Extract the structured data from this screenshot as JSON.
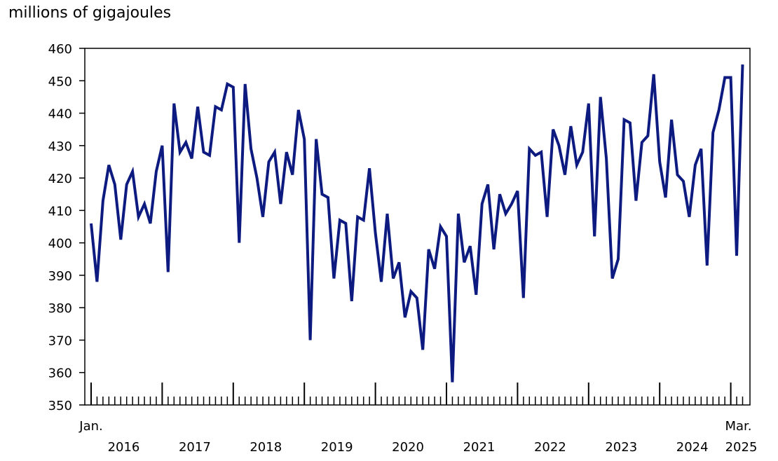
{
  "chart_data": {
    "type": "line",
    "title": "",
    "ylabel": "millions of gigajoules",
    "xlabel": "",
    "ylim": [
      350,
      460
    ],
    "yticks": [
      "350",
      "360",
      "370",
      "380",
      "390",
      "400",
      "410",
      "420",
      "430",
      "440",
      "450",
      "460"
    ],
    "x_start_label": "Jan.",
    "x_end_label": "Mar.",
    "year_labels": [
      "2016",
      "2017",
      "2018",
      "2019",
      "2020",
      "2021",
      "2022",
      "2023",
      "2024",
      "2025"
    ],
    "x": [
      "2016-01",
      "2016-02",
      "2016-03",
      "2016-04",
      "2016-05",
      "2016-06",
      "2016-07",
      "2016-08",
      "2016-09",
      "2016-10",
      "2016-11",
      "2016-12",
      "2017-01",
      "2017-02",
      "2017-03",
      "2017-04",
      "2017-05",
      "2017-06",
      "2017-07",
      "2017-08",
      "2017-09",
      "2017-10",
      "2017-11",
      "2017-12",
      "2018-01",
      "2018-02",
      "2018-03",
      "2018-04",
      "2018-05",
      "2018-06",
      "2018-07",
      "2018-08",
      "2018-09",
      "2018-10",
      "2018-11",
      "2018-12",
      "2019-01",
      "2019-02",
      "2019-03",
      "2019-04",
      "2019-05",
      "2019-06",
      "2019-07",
      "2019-08",
      "2019-09",
      "2019-10",
      "2019-11",
      "2019-12",
      "2020-01",
      "2020-02",
      "2020-03",
      "2020-04",
      "2020-05",
      "2020-06",
      "2020-07",
      "2020-08",
      "2020-09",
      "2020-10",
      "2020-11",
      "2020-12",
      "2021-01",
      "2021-02",
      "2021-03",
      "2021-04",
      "2021-05",
      "2021-06",
      "2021-07",
      "2021-08",
      "2021-09",
      "2021-10",
      "2021-11",
      "2021-12",
      "2022-01",
      "2022-02",
      "2022-03",
      "2022-04",
      "2022-05",
      "2022-06",
      "2022-07",
      "2022-08",
      "2022-09",
      "2022-10",
      "2022-11",
      "2022-12",
      "2023-01",
      "2023-02",
      "2023-03",
      "2023-04",
      "2023-05",
      "2023-06",
      "2023-07",
      "2023-08",
      "2023-09",
      "2023-10",
      "2023-11",
      "2023-12",
      "2024-01",
      "2024-02",
      "2024-03",
      "2024-04",
      "2024-05",
      "2024-06",
      "2024-07",
      "2024-08",
      "2024-09",
      "2024-10",
      "2024-11",
      "2024-12",
      "2025-01",
      "2025-02",
      "2025-03"
    ],
    "series": [
      {
        "name": "millions of gigajoules",
        "color": "#0d1b80",
        "values": [
          406,
          388,
          413,
          424,
          418,
          401,
          418,
          422,
          408,
          412,
          406,
          422,
          430,
          391,
          443,
          428,
          431,
          426,
          442,
          428,
          427,
          442,
          441,
          449,
          448,
          400,
          449,
          429,
          420,
          408,
          425,
          428,
          412,
          428,
          421,
          441,
          432,
          370,
          432,
          415,
          414,
          389,
          407,
          406,
          382,
          408,
          407,
          423,
          403,
          388,
          409,
          389,
          394,
          377,
          385,
          383,
          367,
          398,
          392,
          405,
          402,
          357,
          409,
          394,
          399,
          384,
          412,
          418,
          398,
          415,
          409,
          412,
          416,
          383,
          429,
          427,
          428,
          408,
          435,
          430,
          421,
          436,
          424,
          428,
          443,
          402,
          445,
          426,
          389,
          395,
          438,
          437,
          413,
          431,
          433,
          452,
          425,
          414,
          438,
          421,
          419,
          408,
          424,
          429,
          393,
          434,
          441,
          451,
          451,
          396,
          455
        ]
      }
    ]
  }
}
